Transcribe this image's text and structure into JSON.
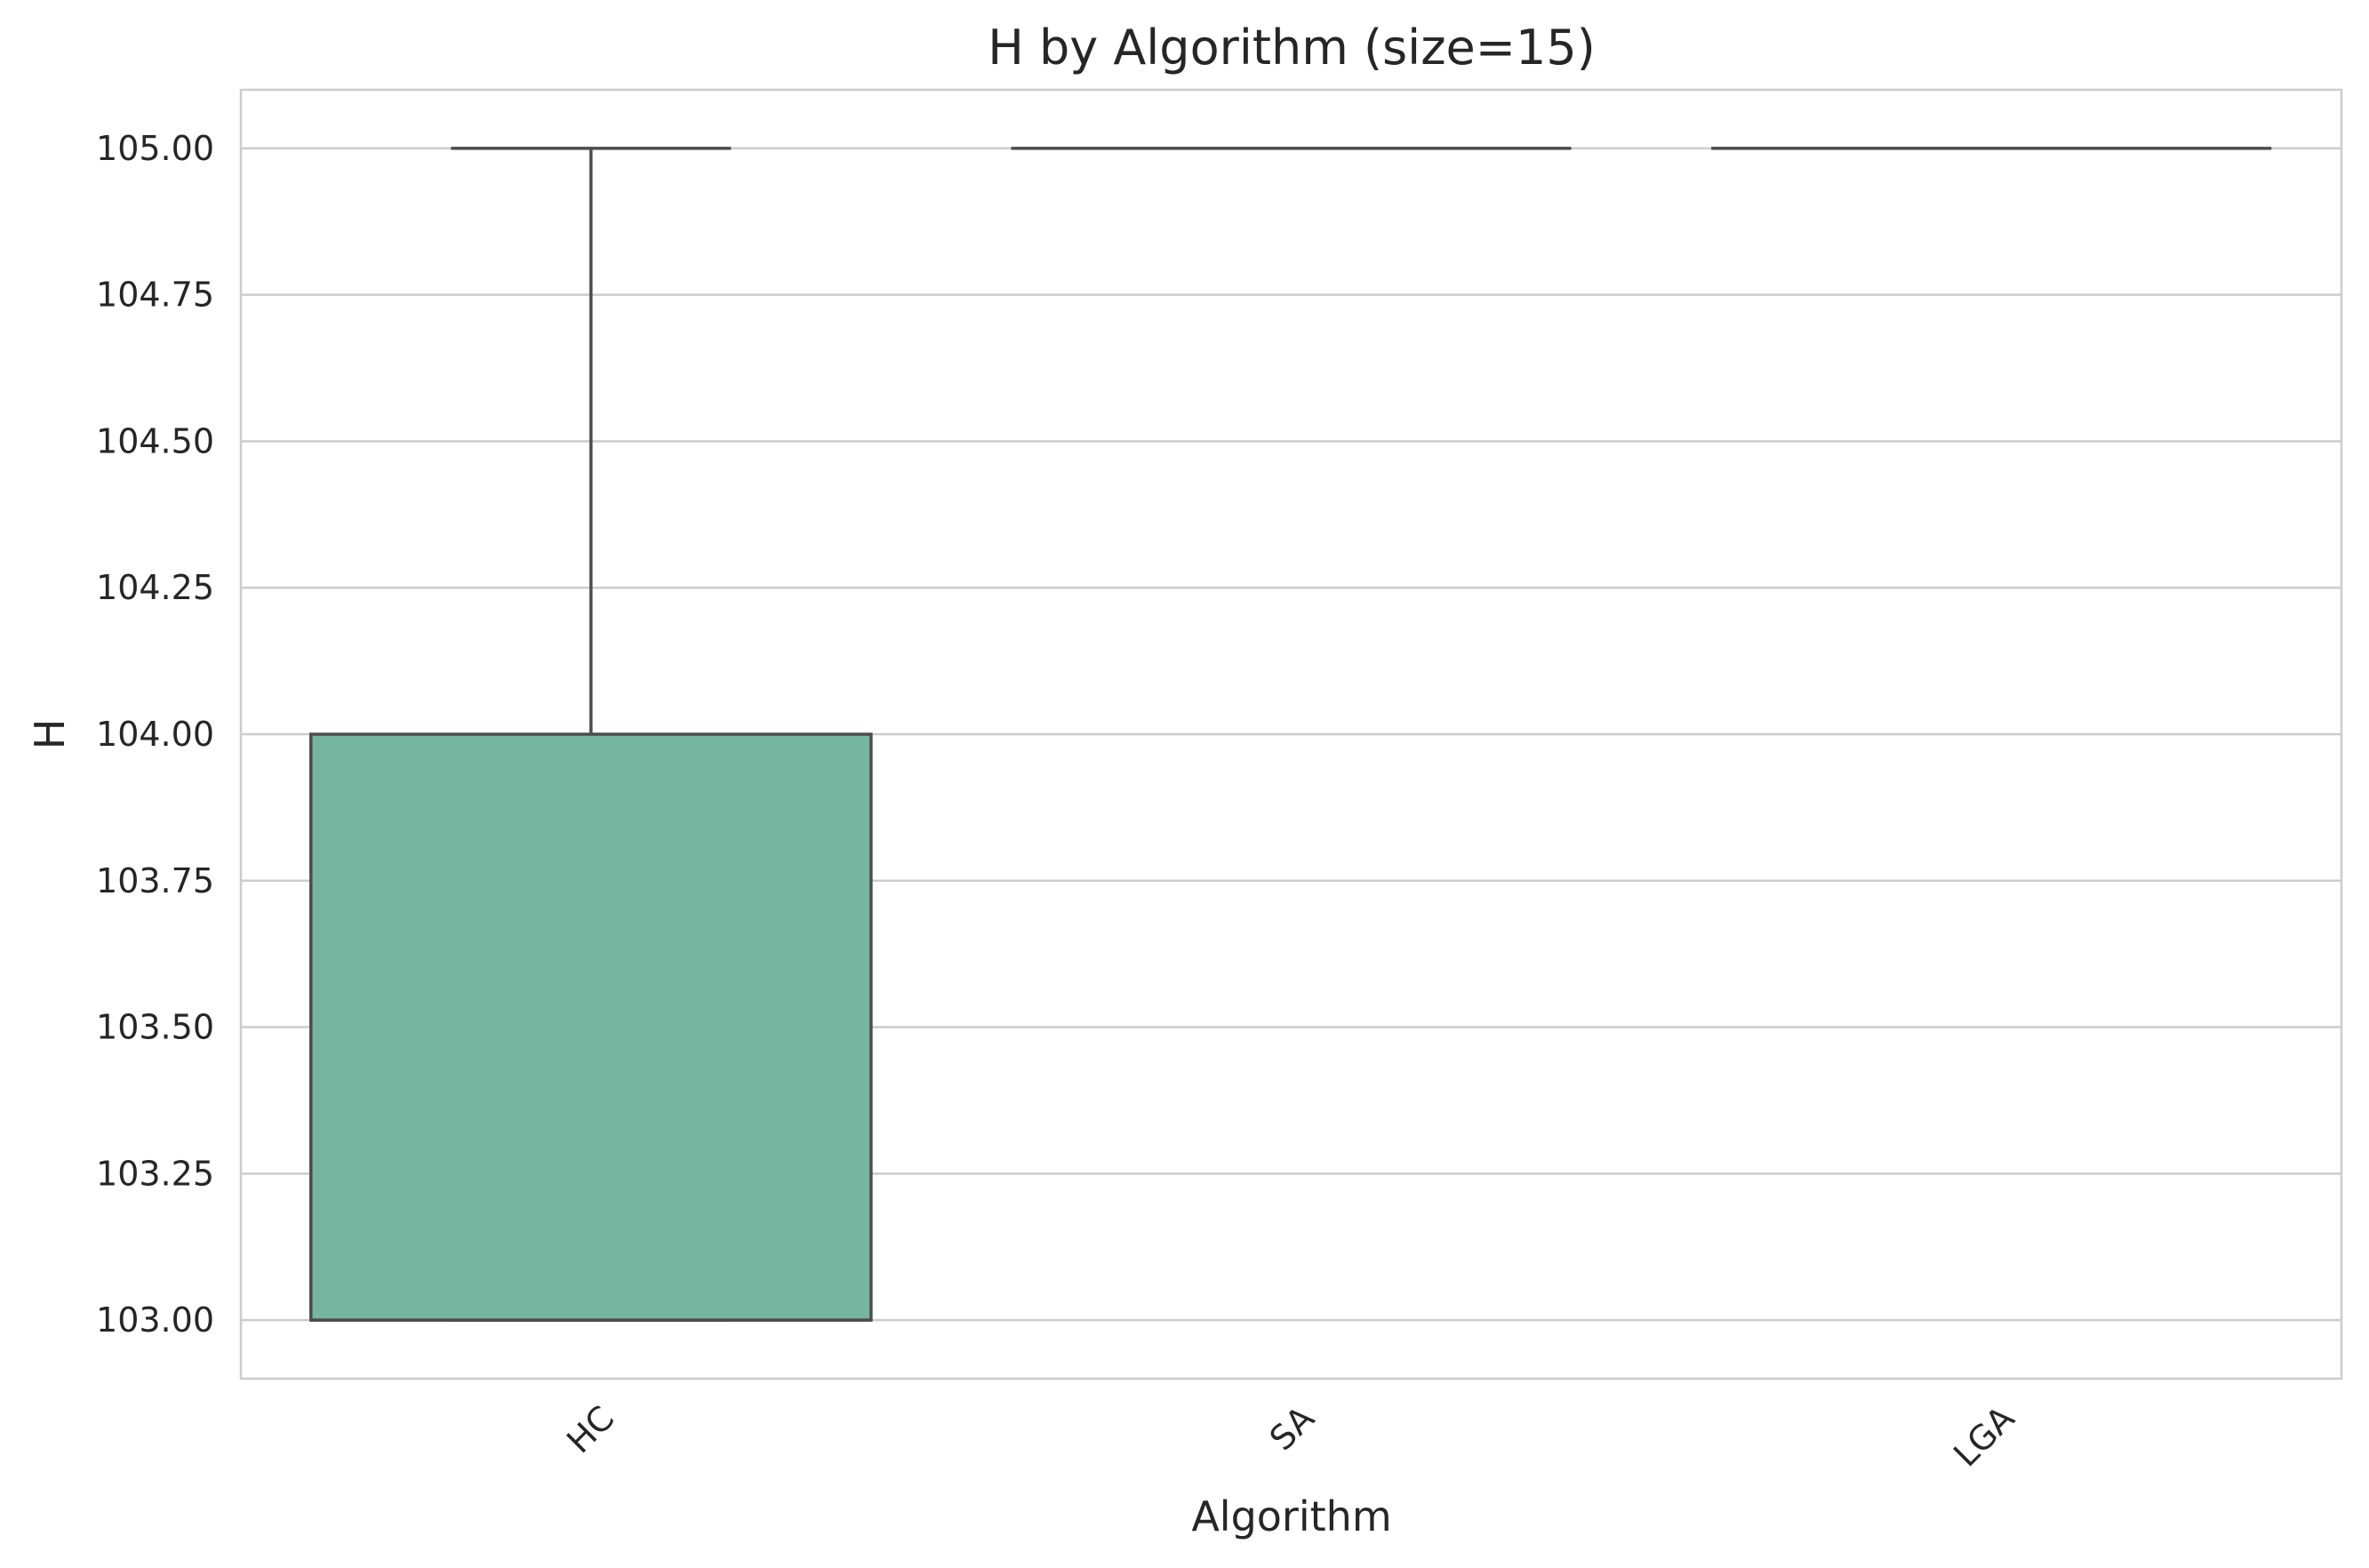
{
  "chart_data": {
    "type": "box",
    "title": "H by Algorithm (size=15)",
    "xlabel": "Algorithm",
    "ylabel": "H",
    "ylim": [
      102.9,
      105.1
    ],
    "yticks": [
      103.0,
      103.25,
      103.5,
      103.75,
      104.0,
      104.25,
      104.5,
      104.75,
      105.0
    ],
    "ytick_labels": [
      "103.00",
      "103.25",
      "103.50",
      "103.75",
      "104.00",
      "104.25",
      "104.50",
      "104.75",
      "105.00"
    ],
    "categories": [
      "HC",
      "SA",
      "LGA"
    ],
    "boxes": [
      {
        "category": "HC",
        "whisker_low": 103.0,
        "q1": 103.0,
        "median": 103.0,
        "q3": 104.0,
        "whisker_high": 105.0,
        "color": "#76b5a0"
      },
      {
        "category": "SA",
        "whisker_low": 105.0,
        "q1": 105.0,
        "median": 105.0,
        "q3": 105.0,
        "whisker_high": 105.0,
        "color": "#fc8d62"
      },
      {
        "category": "LGA",
        "whisker_low": 105.0,
        "q1": 105.0,
        "median": 105.0,
        "q3": 105.0,
        "whisker_high": 105.0,
        "color": "#8da0cb"
      }
    ],
    "grid": "horizontal",
    "line_color": "#4d4d4d"
  }
}
